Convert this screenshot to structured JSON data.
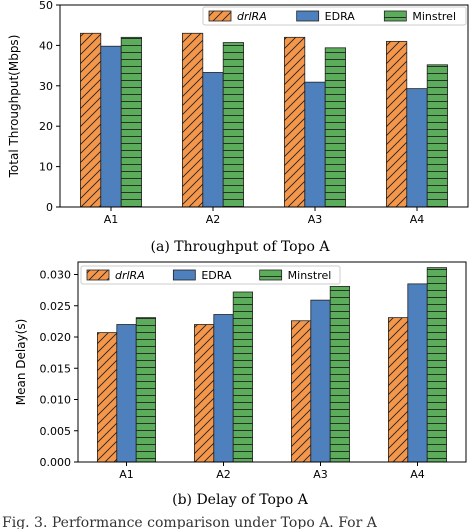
{
  "chart_data": [
    {
      "type": "bar",
      "caption": "(a) Throughput of Topo A",
      "categories": [
        "A1",
        "A2",
        "A3",
        "A4"
      ],
      "xlabel": "",
      "ylabel": "Total Throughput(Mbps)",
      "ylim": [
        0,
        50
      ],
      "yticks": [
        "0",
        "10",
        "20",
        "30",
        "40",
        "50"
      ],
      "legend_position": "top-right",
      "grid": false,
      "series": [
        {
          "name": "drlRA",
          "color": "#f5974a",
          "pattern": "hatch",
          "values": [
            43.0,
            43.0,
            42.0,
            41.0
          ]
        },
        {
          "name": "EDRA",
          "color": "#4d80bd",
          "pattern": "solid",
          "values": [
            39.8,
            33.3,
            30.9,
            29.3
          ]
        },
        {
          "name": "Minstrel",
          "color": "#5bad5b",
          "pattern": "hlines",
          "values": [
            42.0,
            40.7,
            39.4,
            35.2
          ]
        }
      ]
    },
    {
      "type": "bar",
      "caption": "(b) Delay of Topo A",
      "categories": [
        "A1",
        "A2",
        "A3",
        "A4"
      ],
      "xlabel": "",
      "ylabel": "Mean Delay(s)",
      "ylim": [
        0,
        0.032
      ],
      "yticks": [
        "0.000",
        "0.005",
        "0.010",
        "0.015",
        "0.020",
        "0.025",
        "0.030"
      ],
      "legend_position": "top-left",
      "grid": false,
      "series": [
        {
          "name": "drlRA",
          "color": "#f5974a",
          "pattern": "hatch",
          "values": [
            0.0207,
            0.022,
            0.0226,
            0.0231
          ]
        },
        {
          "name": "EDRA",
          "color": "#4d80bd",
          "pattern": "solid",
          "values": [
            0.022,
            0.0236,
            0.0259,
            0.0285
          ]
        },
        {
          "name": "Minstrel",
          "color": "#5bad5b",
          "pattern": "hlines",
          "values": [
            0.0231,
            0.0272,
            0.0281,
            0.0311
          ]
        }
      ]
    }
  ],
  "footer_text": "Fig. 3. Performance comparison under Topo A. For A"
}
